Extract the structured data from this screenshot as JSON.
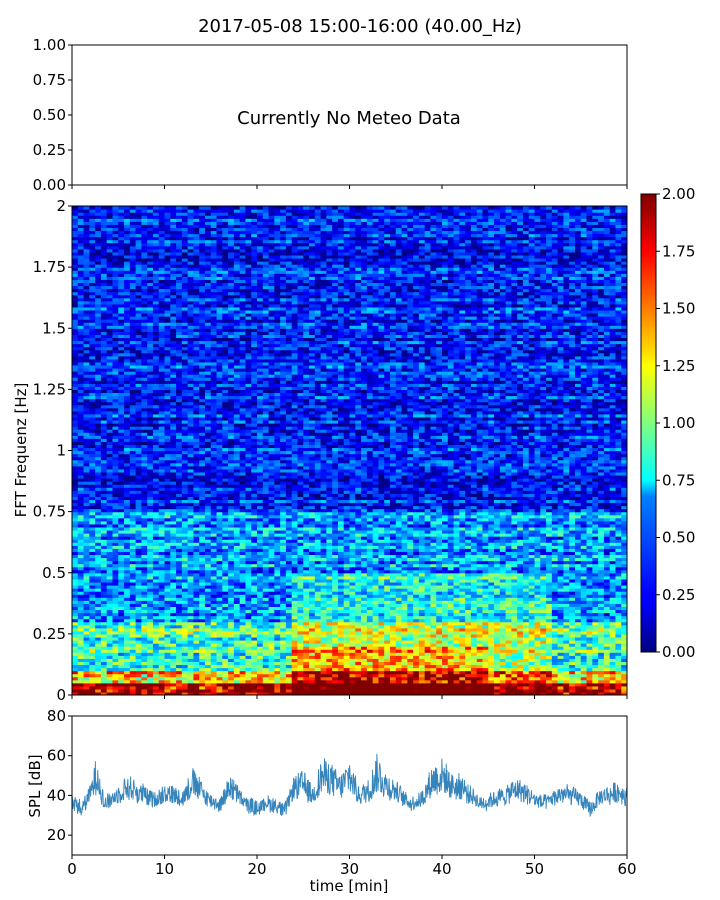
{
  "figure": {
    "title": "2017-05-08 15:00-16:00 (40.00_Hz)"
  },
  "chart_data": [
    {
      "type": "line",
      "panel": "meteo",
      "annotation": "Currently No Meteo Data",
      "ylim": [
        0,
        1
      ],
      "yticks": [
        "0.00",
        "0.25",
        "0.50",
        "0.75",
        "1.00"
      ],
      "xlim": [
        0,
        60
      ],
      "series": []
    },
    {
      "type": "heatmap",
      "panel": "spectrogram",
      "ylabel": "FFT Frequenz [Hz]",
      "xlim": [
        0,
        60
      ],
      "ylim": [
        0,
        2
      ],
      "yticks": [
        "0",
        "0.25",
        "0.5",
        "0.75",
        "1",
        "1.25",
        "1.5",
        "1.75",
        "2"
      ],
      "colormap": "jet",
      "colorbar": {
        "range": [
          0,
          2
        ],
        "ticks": [
          "0.00",
          "0.25",
          "0.50",
          "0.75",
          "1.00",
          "1.25",
          "1.50",
          "1.75",
          "2.00"
        ]
      },
      "description_of_values": [
        {
          "freq_band_hz": [
            0,
            0.05
          ],
          "typical_value": 1.9
        },
        {
          "freq_band_hz": [
            0.05,
            0.1
          ],
          "typical_value": 1.4
        },
        {
          "freq_band_hz": [
            0.1,
            0.3
          ],
          "typical_value": 0.9
        },
        {
          "freq_band_hz": [
            0.3,
            0.75
          ],
          "typical_value": 0.55
        },
        {
          "freq_band_hz": [
            0.75,
            2.0
          ],
          "typical_value": 0.3
        }
      ]
    },
    {
      "type": "line",
      "panel": "spl",
      "ylabel": "SPL [dB]",
      "xlabel": "time [min]",
      "xlim": [
        0,
        60
      ],
      "ylim": [
        10,
        80
      ],
      "xticks": [
        "0",
        "10",
        "20",
        "30",
        "40",
        "50",
        "60"
      ],
      "yticks": [
        "20",
        "40",
        "60",
        "80"
      ],
      "color": "#1f77b4",
      "series": [
        {
          "x": [
            0,
            1,
            2,
            2.7,
            3.5,
            5,
            6,
            7,
            8,
            9,
            10,
            11,
            12,
            13,
            14,
            15,
            16,
            17,
            18,
            19,
            20,
            21,
            22,
            23,
            24,
            25,
            26,
            27,
            28,
            29,
            30,
            31,
            32,
            33,
            34,
            35,
            36,
            37,
            38,
            39,
            40,
            41,
            42,
            43,
            44,
            45,
            46,
            47,
            48,
            49,
            50,
            51,
            52,
            53,
            54,
            55,
            56,
            57,
            58,
            59,
            60
          ],
          "y": [
            38,
            33,
            40,
            52,
            36,
            40,
            44,
            42,
            40,
            38,
            41,
            40,
            39,
            47,
            42,
            37,
            35,
            45,
            40,
            35,
            34,
            36,
            35,
            33,
            43,
            46,
            40,
            50,
            48,
            44,
            50,
            40,
            43,
            52,
            45,
            42,
            38,
            36,
            40,
            48,
            50,
            44,
            45,
            40,
            36,
            37,
            39,
            40,
            43,
            41,
            38,
            36,
            38,
            41,
            40,
            38,
            33,
            38,
            40,
            42,
            40
          ]
        }
      ]
    }
  ]
}
